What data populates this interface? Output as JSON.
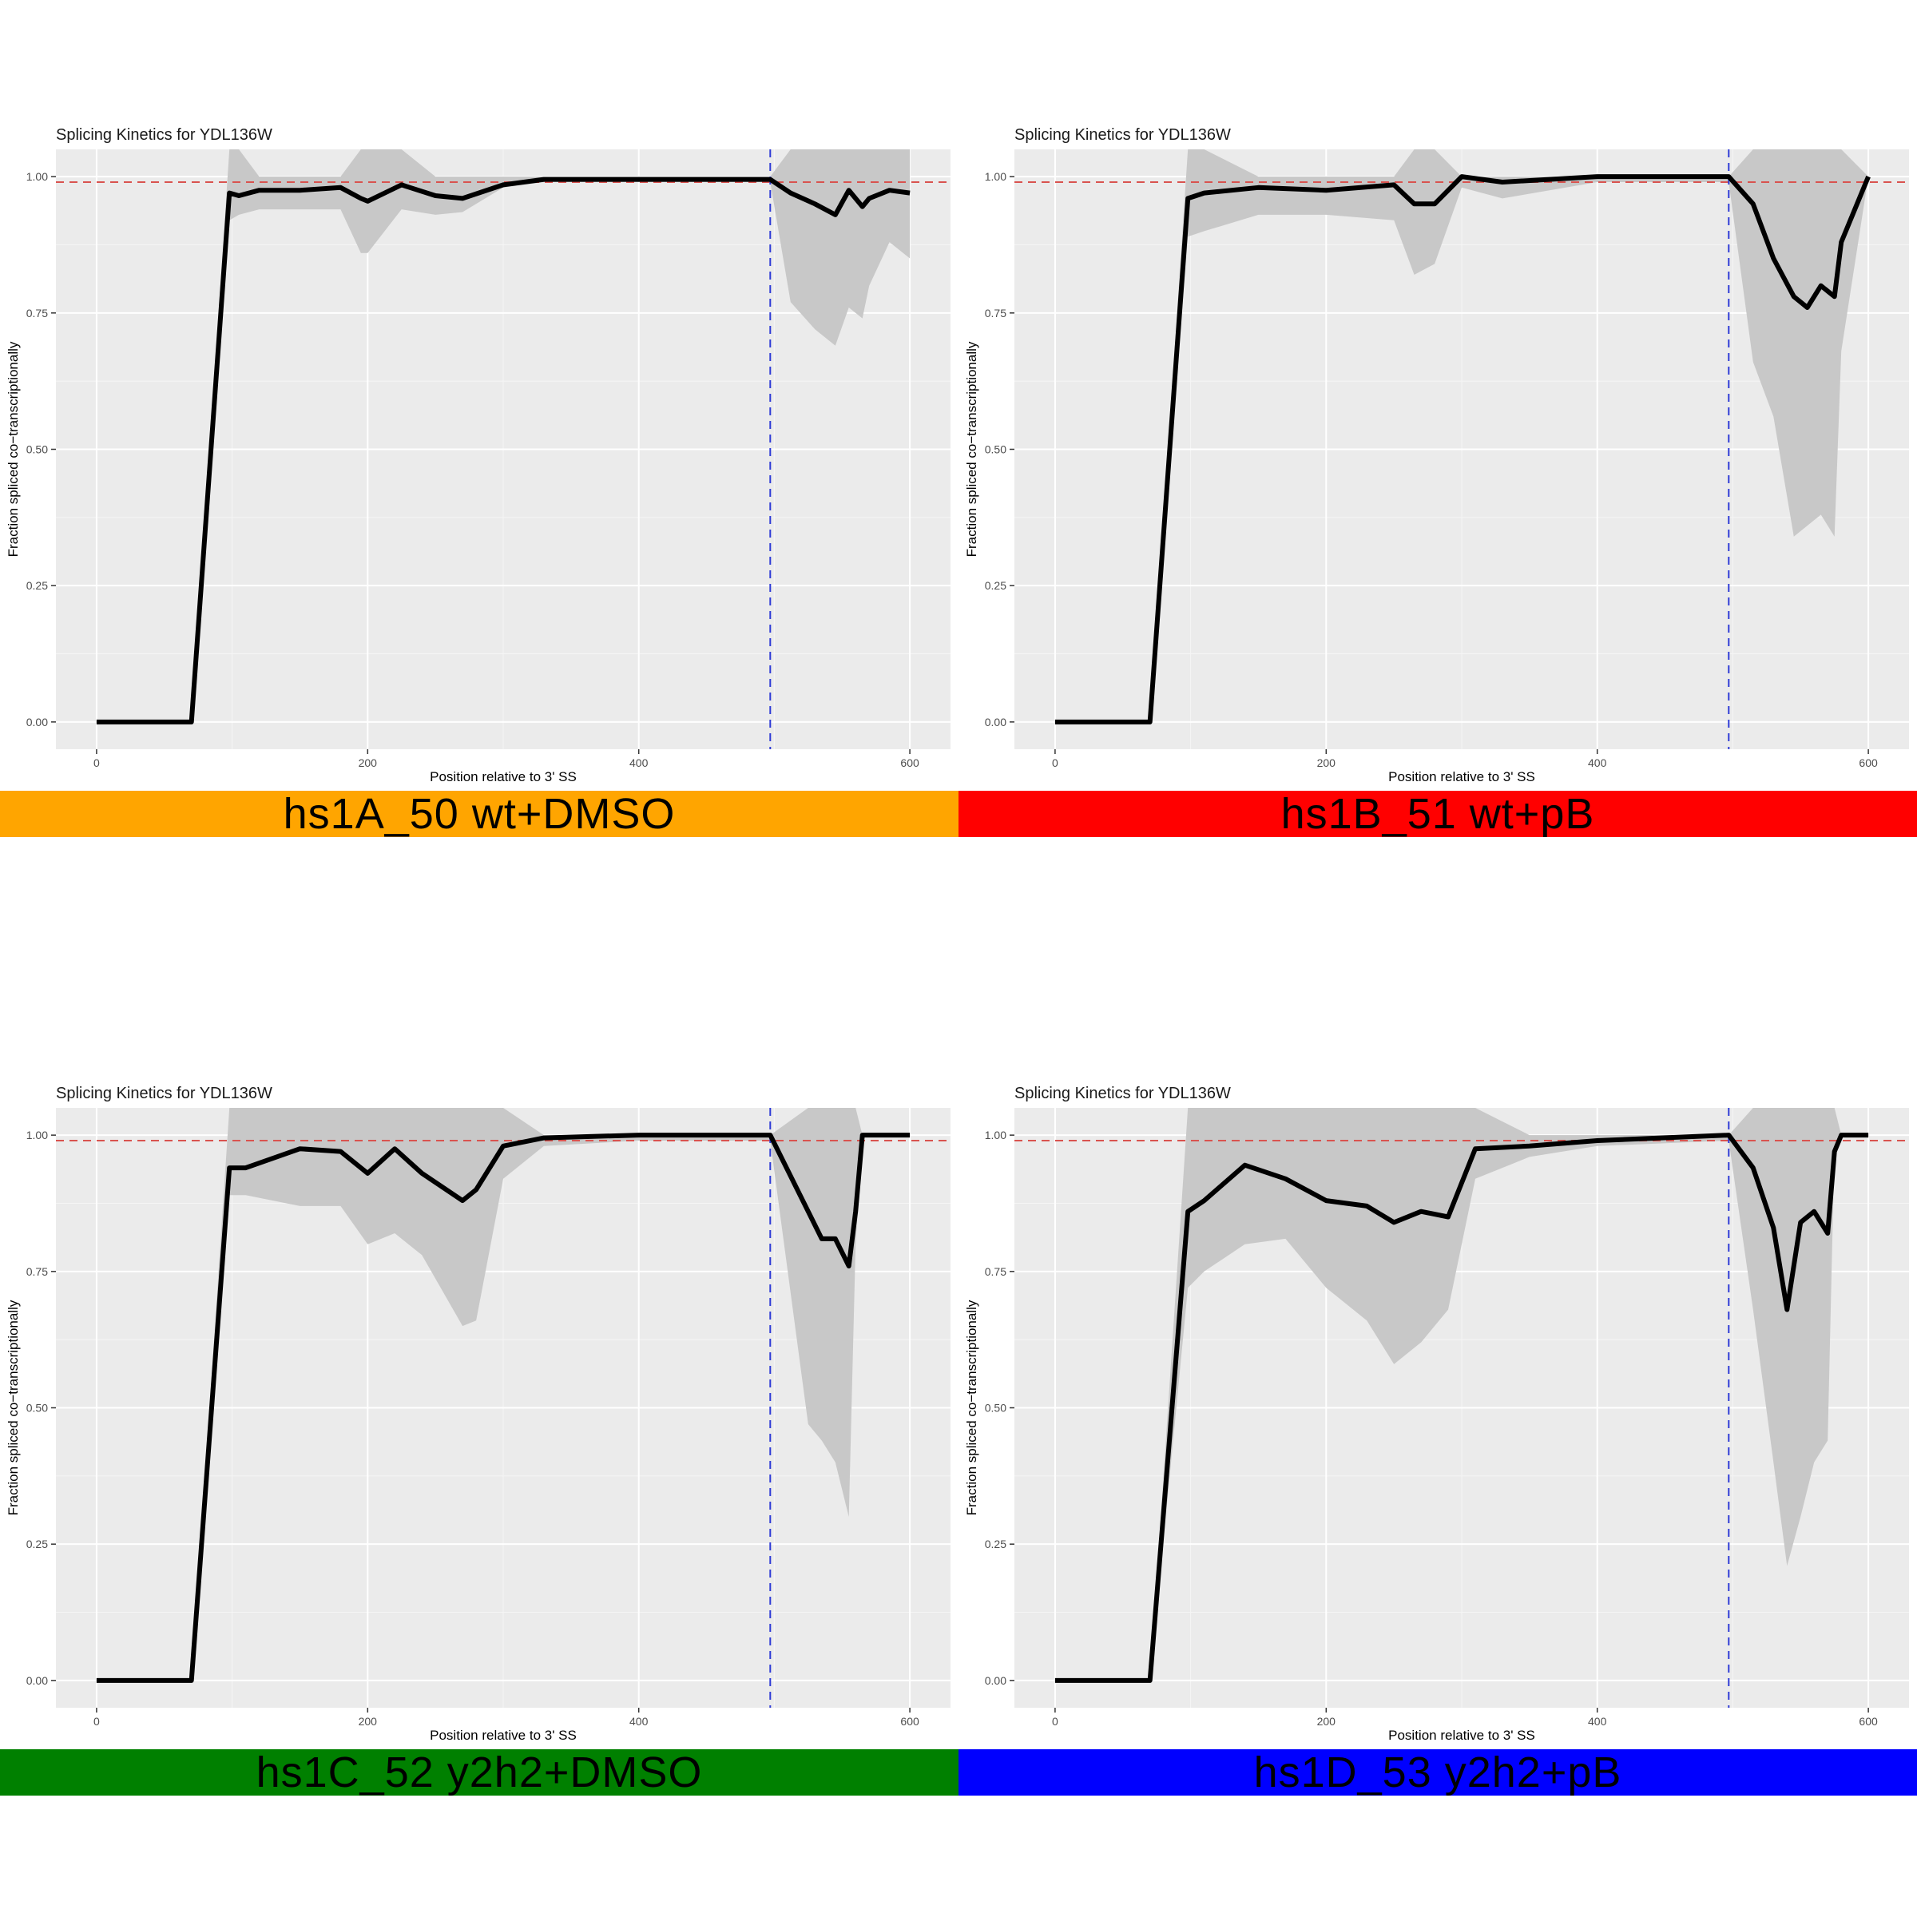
{
  "colors": {
    "panel_bg": "#EBEBEB",
    "grid_major": "#FFFFFF",
    "grid_minor": "#F5F5F5",
    "ribbon": "#C8C8C8",
    "line": "#000000",
    "reference_hline": "#D9534F",
    "reference_vline": "#2E3BD6"
  },
  "chart_data": [
    {
      "type": "line",
      "title": "Splicing Kinetics for YDL136W",
      "xlabel": "Position relative to 3' SS",
      "ylabel": "Fraction spliced co−transcriptionally",
      "xlim": [
        -30,
        630
      ],
      "ylim": [
        -0.05,
        1.05
      ],
      "x_ticks": [
        0,
        200,
        400,
        600
      ],
      "y_ticks": [
        0.0,
        0.25,
        0.5,
        0.75,
        1.0
      ],
      "y_tick_labels": [
        "0.00",
        "0.25",
        "0.50",
        "0.75",
        "1.00"
      ],
      "grid": true,
      "hline": 0.99,
      "vline": 497,
      "label": "hs1A_50 wt+DMSO",
      "label_color": "#FFA500",
      "series": [
        {
          "x": [
            0,
            70,
            98,
            105,
            120,
            150,
            180,
            195,
            200,
            225,
            250,
            270,
            300,
            330,
            400,
            497,
            512,
            530,
            545,
            555,
            565,
            570,
            585,
            600
          ],
          "y": [
            0,
            0,
            0.97,
            0.965,
            0.975,
            0.975,
            0.98,
            0.96,
            0.955,
            0.985,
            0.965,
            0.96,
            0.985,
            0.995,
            0.995,
            0.995,
            0.97,
            0.95,
            0.93,
            0.975,
            0.945,
            0.96,
            0.975,
            0.97
          ],
          "lower": [
            0,
            0,
            0.92,
            0.93,
            0.94,
            0.94,
            0.94,
            0.86,
            0.86,
            0.94,
            0.93,
            0.935,
            0.98,
            0.99,
            0.99,
            0.99,
            0.77,
            0.72,
            0.69,
            0.76,
            0.74,
            0.8,
            0.88,
            0.85
          ],
          "upper": [
            0,
            0,
            1.05,
            1.05,
            1.0,
            1.0,
            1.0,
            1.05,
            1.05,
            1.05,
            1.0,
            1.0,
            1.0,
            1.0,
            1.0,
            1.0,
            1.05,
            1.05,
            1.05,
            1.05,
            1.05,
            1.05,
            1.05,
            1.05
          ]
        }
      ]
    },
    {
      "type": "line",
      "title": "Splicing Kinetics for YDL136W",
      "xlabel": "Position relative to 3' SS",
      "ylabel": "Fraction spliced co−transcriptionally",
      "xlim": [
        -30,
        630
      ],
      "ylim": [
        -0.05,
        1.05
      ],
      "x_ticks": [
        0,
        200,
        400,
        600
      ],
      "y_ticks": [
        0.0,
        0.25,
        0.5,
        0.75,
        1.0
      ],
      "y_tick_labels": [
        "0.00",
        "0.25",
        "0.50",
        "0.75",
        "1.00"
      ],
      "grid": true,
      "hline": 0.99,
      "vline": 497,
      "label": "hs1B_51 wt+pB",
      "label_color": "#FF0000",
      "series": [
        {
          "x": [
            0,
            70,
            98,
            110,
            150,
            200,
            250,
            265,
            280,
            300,
            330,
            400,
            497,
            515,
            530,
            545,
            555,
            565,
            575,
            580,
            600
          ],
          "y": [
            0,
            0,
            0.96,
            0.97,
            0.98,
            0.975,
            0.985,
            0.95,
            0.95,
            1.0,
            0.99,
            1.0,
            1.0,
            0.95,
            0.85,
            0.78,
            0.76,
            0.8,
            0.78,
            0.88,
            1.0
          ],
          "lower": [
            0,
            0,
            0.89,
            0.9,
            0.93,
            0.93,
            0.92,
            0.82,
            0.84,
            0.98,
            0.96,
            0.99,
            0.99,
            0.66,
            0.56,
            0.34,
            0.36,
            0.38,
            0.34,
            0.68,
            1.0
          ],
          "upper": [
            0,
            0,
            1.05,
            1.05,
            1.0,
            1.0,
            1.0,
            1.05,
            1.05,
            1.0,
            1.0,
            1.0,
            1.0,
            1.05,
            1.05,
            1.05,
            1.05,
            1.05,
            1.05,
            1.05,
            1.0
          ]
        }
      ]
    },
    {
      "type": "line",
      "title": "Splicing Kinetics for YDL136W",
      "xlabel": "Position relative to 3' SS",
      "ylabel": "Fraction spliced co−transcriptionally",
      "xlim": [
        -30,
        630
      ],
      "ylim": [
        -0.05,
        1.05
      ],
      "x_ticks": [
        0,
        200,
        400,
        600
      ],
      "y_ticks": [
        0.0,
        0.25,
        0.5,
        0.75,
        1.0
      ],
      "y_tick_labels": [
        "0.00",
        "0.25",
        "0.50",
        "0.75",
        "1.00"
      ],
      "grid": true,
      "hline": 0.99,
      "vline": 497,
      "label": "hs1C_52 y2h2+DMSO",
      "label_color": "#008000",
      "series": [
        {
          "x": [
            0,
            70,
            98,
            110,
            150,
            180,
            200,
            220,
            240,
            270,
            280,
            300,
            330,
            400,
            497,
            525,
            535,
            545,
            555,
            560,
            565,
            570,
            600
          ],
          "y": [
            0,
            0,
            0.94,
            0.94,
            0.975,
            0.97,
            0.93,
            0.975,
            0.93,
            0.88,
            0.9,
            0.98,
            0.995,
            1.0,
            1.0,
            0.86,
            0.81,
            0.81,
            0.76,
            0.86,
            1.0,
            1.0,
            1.0
          ],
          "lower": [
            0,
            0,
            0.89,
            0.89,
            0.87,
            0.87,
            0.8,
            0.82,
            0.78,
            0.65,
            0.66,
            0.92,
            0.98,
            0.99,
            0.99,
            0.47,
            0.44,
            0.4,
            0.3,
            0.8,
            1.0,
            1.0,
            1.0
          ],
          "upper": [
            0,
            0,
            1.05,
            1.05,
            1.05,
            1.05,
            1.05,
            1.05,
            1.05,
            1.05,
            1.05,
            1.05,
            1.0,
            1.0,
            1.0,
            1.05,
            1.05,
            1.05,
            1.05,
            1.05,
            1.0,
            1.0,
            1.0
          ]
        }
      ]
    },
    {
      "type": "line",
      "title": "Splicing Kinetics for YDL136W",
      "xlabel": "Position relative to 3' SS",
      "ylabel": "Fraction spliced co−transcriptionally",
      "xlim": [
        -30,
        630
      ],
      "ylim": [
        -0.05,
        1.05
      ],
      "x_ticks": [
        0,
        200,
        400,
        600
      ],
      "y_ticks": [
        0.0,
        0.25,
        0.5,
        0.75,
        1.0
      ],
      "y_tick_labels": [
        "0.00",
        "0.25",
        "0.50",
        "0.75",
        "1.00"
      ],
      "grid": true,
      "hline": 0.99,
      "vline": 497,
      "label": "hs1D_53 y2h2+pB",
      "label_color": "#0000FF",
      "series": [
        {
          "x": [
            0,
            70,
            98,
            110,
            140,
            170,
            200,
            230,
            250,
            270,
            290,
            310,
            350,
            400,
            497,
            515,
            530,
            540,
            550,
            560,
            570,
            575,
            580,
            600
          ],
          "y": [
            0,
            0,
            0.86,
            0.88,
            0.945,
            0.92,
            0.88,
            0.87,
            0.84,
            0.86,
            0.85,
            0.975,
            0.98,
            0.99,
            1.0,
            0.94,
            0.83,
            0.68,
            0.84,
            0.86,
            0.82,
            0.97,
            1.0,
            1.0
          ],
          "lower": [
            0,
            0,
            0.72,
            0.75,
            0.8,
            0.81,
            0.72,
            0.66,
            0.58,
            0.62,
            0.68,
            0.92,
            0.96,
            0.98,
            0.99,
            0.68,
            0.4,
            0.21,
            0.3,
            0.4,
            0.44,
            0.98,
            1.0,
            1.0
          ],
          "upper": [
            0,
            0,
            1.05,
            1.05,
            1.05,
            1.05,
            1.05,
            1.05,
            1.05,
            1.05,
            1.05,
            1.05,
            1.0,
            1.0,
            1.0,
            1.05,
            1.05,
            1.05,
            1.05,
            1.05,
            1.05,
            1.05,
            1.0,
            1.0
          ]
        }
      ]
    }
  ]
}
